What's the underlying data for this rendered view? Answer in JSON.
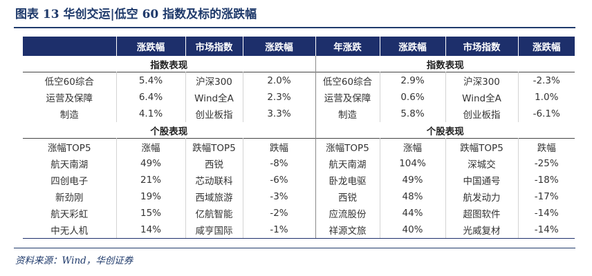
{
  "figure": {
    "title": "图表 13   华创交运|低空 60 指数及标的涨跌幅"
  },
  "header": [
    "",
    "涨跌幅",
    "市场指数",
    "涨跌幅",
    "年涨跌",
    "涨跌幅",
    "市场指数",
    "涨跌幅"
  ],
  "section_index": "指数表现",
  "index_rows": [
    [
      "低空60综合",
      "5.4%",
      "沪深300",
      "2.0%",
      "低空60综合",
      "2.9%",
      "沪深300",
      "-2.3%"
    ],
    [
      "运营及保障",
      "6.4%",
      "Wind全A",
      "2.3%",
      "运营及保障",
      "0.6%",
      "Wind全A",
      "1.0%"
    ],
    [
      "制造",
      "4.1%",
      "创业板指",
      "3.3%",
      "制造",
      "5.8%",
      "创业板指",
      "-6.1%"
    ]
  ],
  "section_stock": "个股表现",
  "stock_header": [
    "涨幅TOP5",
    "涨幅",
    "跌幅TOP5",
    "跌幅",
    "涨幅TOP5",
    "涨幅",
    "跌幅TOP5",
    "跌幅"
  ],
  "stock_rows": [
    [
      "航天南湖",
      "49%",
      "西锐",
      "-8%",
      "航天南湖",
      "104%",
      "深城交",
      "-25%"
    ],
    [
      "四创电子",
      "21%",
      "芯动联科",
      "-6%",
      "卧龙电驱",
      "49%",
      "中国通号",
      "-18%"
    ],
    [
      "新劲刚",
      "19%",
      "西域旅游",
      "-3%",
      "西锐",
      "48%",
      "航发动力",
      "-17%"
    ],
    [
      "航天彩虹",
      "15%",
      "亿航智能",
      "-2%",
      "应流股份",
      "44%",
      "超图软件",
      "-14%"
    ],
    [
      "中无人机",
      "14%",
      "咸亨国际",
      "-1%",
      "祥源文旅",
      "40%",
      "光威复材",
      "-14%"
    ]
  ],
  "source": "资料来源：Wind，华创证券"
}
